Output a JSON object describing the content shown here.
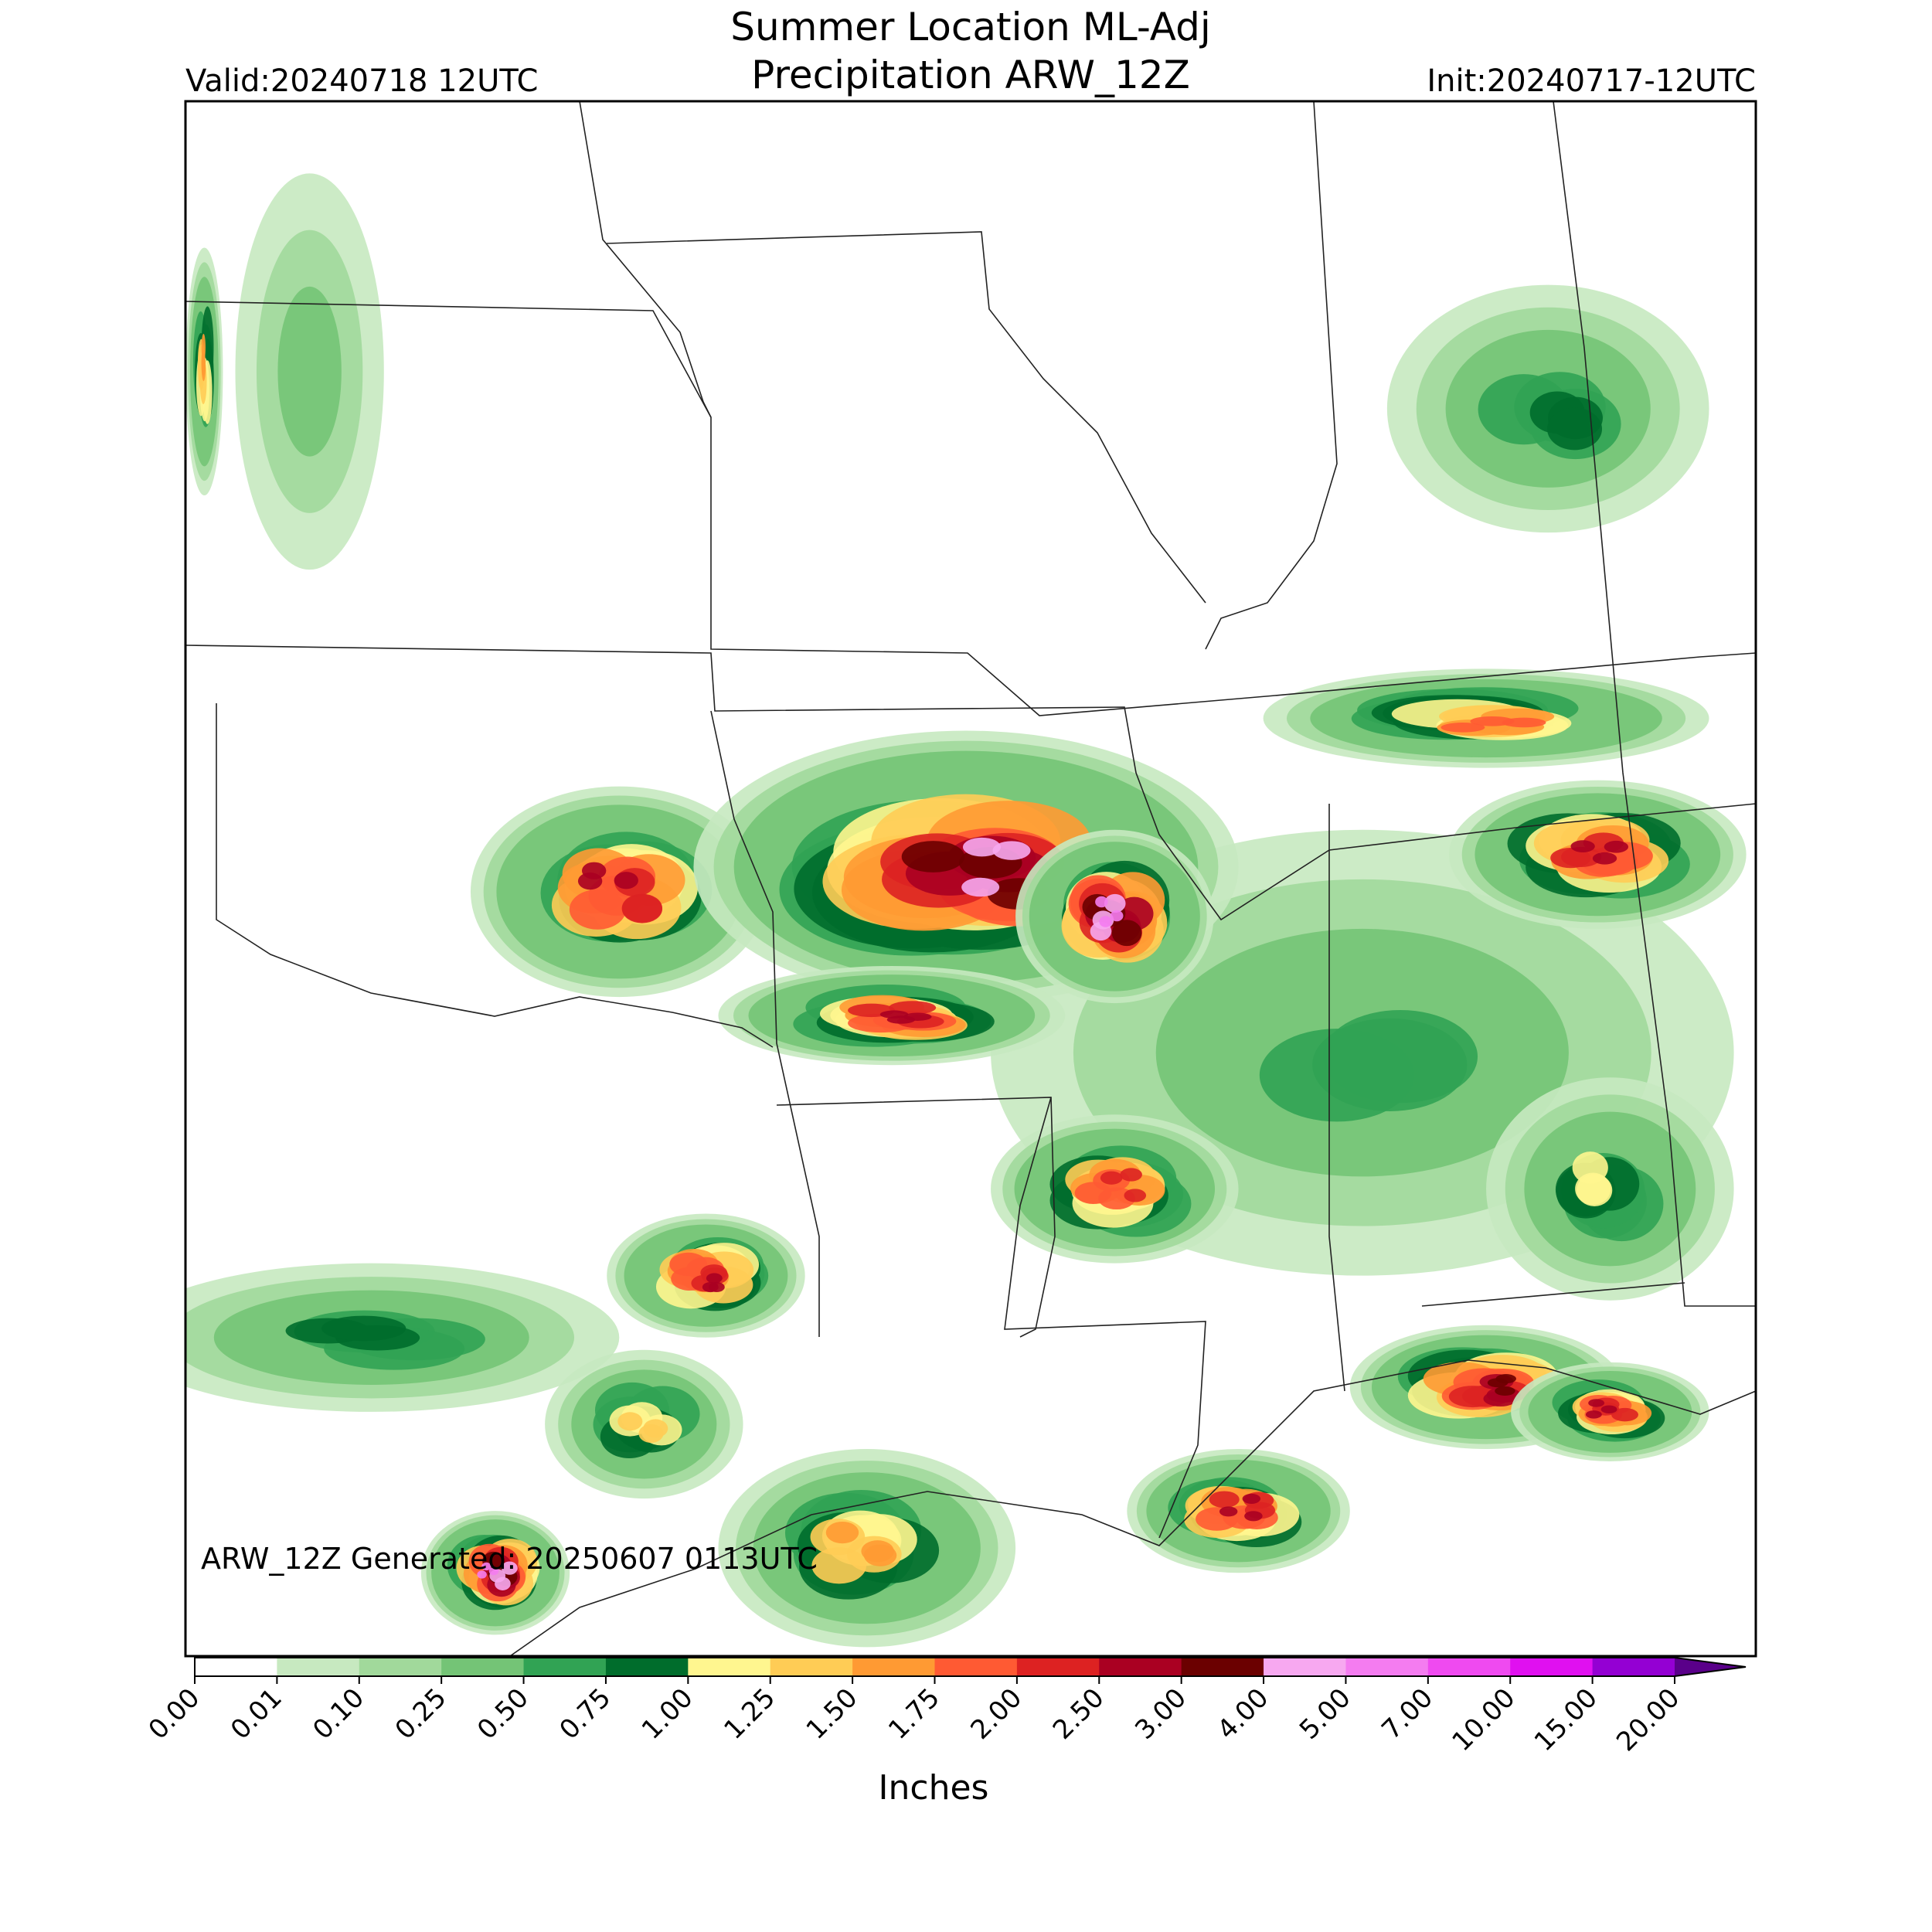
{
  "title": {
    "line1": "Summer Location ML-Adj",
    "line2": "Precipitation ARW_12Z"
  },
  "valid": "Valid:20240718 12UTC",
  "init": "Init:20240717-12UTC",
  "generated": "ARW_12Z Generated: 20250607 0113UTC",
  "colorbar": {
    "label": "Inches",
    "ticks": [
      {
        "value": 0,
        "label": "0.00"
      },
      {
        "value": 0.01,
        "label": "0.01"
      },
      {
        "value": 0.1,
        "label": "0.10"
      },
      {
        "value": 0.25,
        "label": "0.25"
      },
      {
        "value": 0.5,
        "label": "0.50"
      },
      {
        "value": 0.75,
        "label": "0.75"
      },
      {
        "value": 1,
        "label": "1.00"
      },
      {
        "value": 1.25,
        "label": "1.25"
      },
      {
        "value": 1.5,
        "label": "1.50"
      },
      {
        "value": 1.75,
        "label": "1.75"
      },
      {
        "value": 2,
        "label": "2.00"
      },
      {
        "value": 2.5,
        "label": "2.50"
      },
      {
        "value": 3,
        "label": "3.00"
      },
      {
        "value": 4,
        "label": "4.00"
      },
      {
        "value": 5,
        "label": "5.00"
      },
      {
        "value": 7,
        "label": "7.00"
      },
      {
        "value": 10,
        "label": "10.00"
      },
      {
        "value": 15,
        "label": "15.00"
      },
      {
        "value": 20,
        "label": "20.00"
      }
    ],
    "colors": [
      "#ffffff",
      "#c7e9c0",
      "#a1d99b",
      "#74c476",
      "#31a354",
      "#006d2c",
      "#fff68f",
      "#ffcc55",
      "#ff9a33",
      "#ff5a33",
      "#dd2222",
      "#aa0022",
      "#6b0000",
      "#f7a8f0",
      "#f47cf0",
      "#ef4af0",
      "#e010f0",
      "#9400d3"
    ],
    "extend_color": "#5a008a"
  }
}
